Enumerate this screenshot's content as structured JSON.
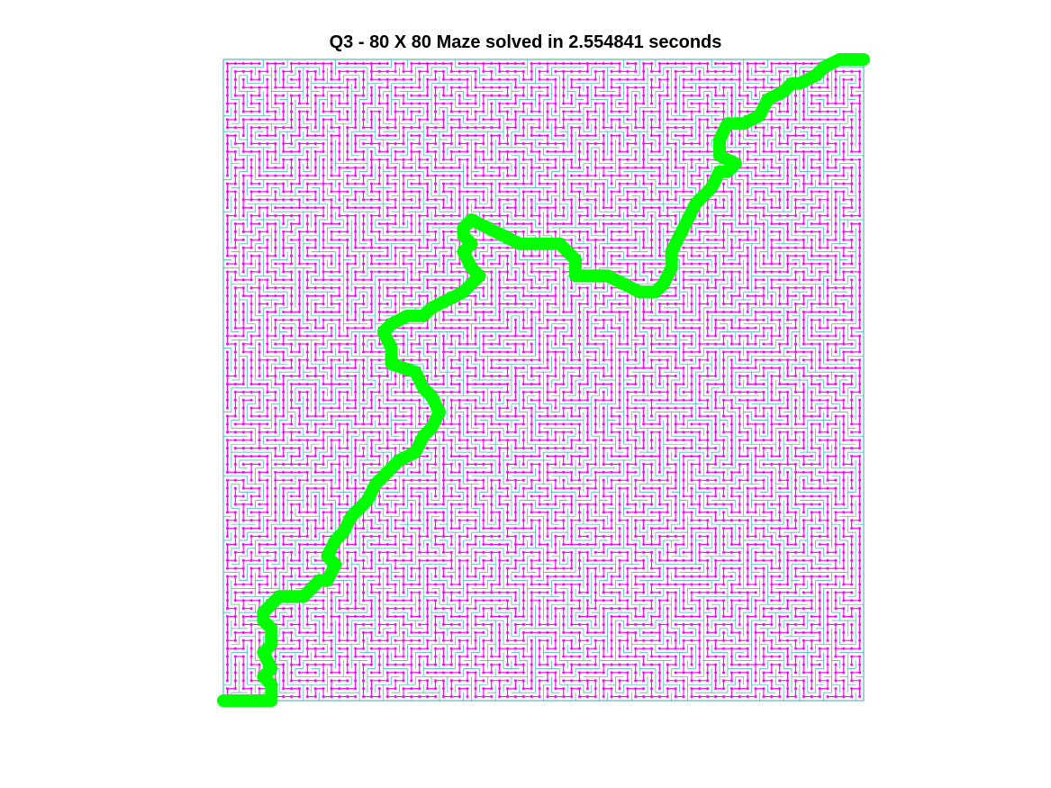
{
  "figure": {
    "title": "Q3 - 80 X 80 Maze solved in 2.554841 seconds"
  },
  "chart_data": {
    "type": "scatter",
    "title": "Q3 - 80 X 80 Maze solved in 2.554841 seconds",
    "xlabel": "",
    "ylabel": "",
    "grid_size": 80,
    "xlim": [
      0,
      80
    ],
    "ylim": [
      0,
      80
    ],
    "grid": false,
    "axes_visible": false,
    "colors": {
      "walls": "#3fa7b8",
      "graph": "#ff00ff",
      "path": "#00ff00"
    },
    "series": [
      {
        "kind": "path",
        "points": [
          [
            0,
            0
          ],
          [
            1,
            0
          ],
          [
            2,
            0
          ],
          [
            3,
            0
          ],
          [
            4,
            0
          ],
          [
            5,
            0
          ],
          [
            6,
            0
          ],
          [
            6,
            2
          ],
          [
            5,
            3
          ],
          [
            6,
            4
          ],
          [
            5,
            6
          ],
          [
            6,
            7
          ],
          [
            6,
            9
          ],
          [
            5,
            10
          ],
          [
            5,
            11
          ],
          [
            6,
            12
          ],
          [
            7,
            13
          ],
          [
            8,
            13
          ],
          [
            10,
            13
          ],
          [
            11,
            14
          ],
          [
            12,
            15
          ],
          [
            13,
            15
          ],
          [
            14,
            17
          ],
          [
            13,
            18
          ],
          [
            14,
            20
          ],
          [
            15,
            21
          ],
          [
            16,
            23
          ],
          [
            17,
            24
          ],
          [
            18,
            25
          ],
          [
            19,
            27
          ],
          [
            20,
            28
          ],
          [
            21,
            29
          ],
          [
            22,
            30
          ],
          [
            24,
            31
          ],
          [
            25,
            33
          ],
          [
            26,
            34
          ],
          [
            27,
            36
          ],
          [
            26,
            38
          ],
          [
            25,
            39
          ],
          [
            24,
            41
          ],
          [
            21,
            42
          ],
          [
            21,
            44
          ],
          [
            20,
            46
          ],
          [
            21,
            47
          ],
          [
            23,
            48
          ],
          [
            25,
            48
          ],
          [
            26,
            49
          ],
          [
            28,
            50
          ],
          [
            30,
            51
          ],
          [
            31,
            52
          ],
          [
            32,
            53
          ],
          [
            31,
            54
          ],
          [
            30,
            56
          ],
          [
            31,
            57
          ],
          [
            30,
            58
          ],
          [
            30,
            59
          ],
          [
            31,
            60
          ],
          [
            33,
            59
          ],
          [
            35,
            58
          ],
          [
            37,
            57
          ],
          [
            40,
            57
          ],
          [
            42,
            57
          ],
          [
            43,
            56
          ],
          [
            44,
            55
          ],
          [
            44,
            53
          ],
          [
            46,
            53
          ],
          [
            48,
            53
          ],
          [
            50,
            52
          ],
          [
            52,
            51
          ],
          [
            54,
            51
          ],
          [
            55,
            52
          ],
          [
            56,
            54
          ],
          [
            56,
            56
          ],
          [
            57,
            58
          ],
          [
            58,
            60
          ],
          [
            59,
            62
          ],
          [
            61,
            64
          ],
          [
            62,
            66
          ],
          [
            63,
            66
          ],
          [
            64,
            67
          ],
          [
            62,
            68
          ],
          [
            62,
            70
          ],
          [
            63,
            72
          ],
          [
            65,
            72
          ],
          [
            67,
            73
          ],
          [
            68,
            75
          ],
          [
            70,
            76
          ],
          [
            71,
            77
          ],
          [
            72,
            77
          ],
          [
            74,
            78
          ],
          [
            75,
            79
          ],
          [
            77,
            80
          ],
          [
            79,
            80
          ],
          [
            80,
            80
          ]
        ]
      }
    ]
  }
}
